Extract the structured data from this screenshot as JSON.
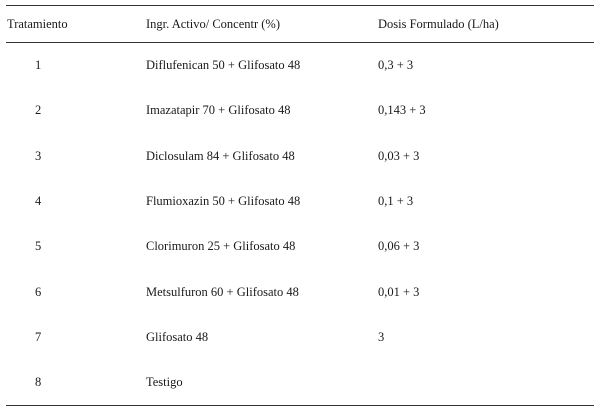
{
  "table": {
    "headers": [
      "Tratamiento",
      "Ingr. Activo/ Concentr (%)",
      "Dosis Formulado (L/ha)"
    ],
    "rows": [
      {
        "tratamiento": "1",
        "ingrediente": "Diflufenican 50 + Glifosato 48",
        "dosis": "0,3 + 3"
      },
      {
        "tratamiento": "2",
        "ingrediente": "Imazatapir 70 + Glifosato 48",
        "dosis": "0,143 + 3"
      },
      {
        "tratamiento": "3",
        "ingrediente": "Diclosulam 84 + Glifosato 48",
        "dosis": "0,03 + 3"
      },
      {
        "tratamiento": "4",
        "ingrediente": "Flumioxazin 50 + Glifosato 48",
        "dosis": "0,1 + 3"
      },
      {
        "tratamiento": "5",
        "ingrediente": "Clorimuron 25 + Glifosato 48",
        "dosis": "0,06 + 3"
      },
      {
        "tratamiento": "6",
        "ingrediente": "Metsulfuron 60 + Glifosato 48",
        "dosis": "0,01 + 3"
      },
      {
        "tratamiento": "7",
        "ingrediente": "Glifosato 48",
        "dosis": "3"
      },
      {
        "tratamiento": "8",
        "ingrediente": "Testigo",
        "dosis": ""
      }
    ]
  }
}
